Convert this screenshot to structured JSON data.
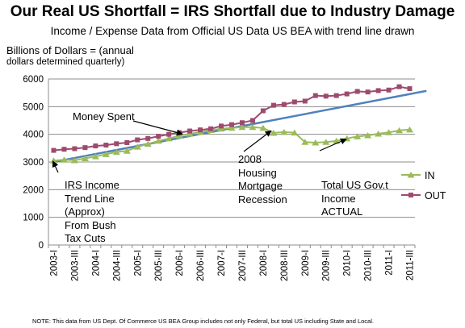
{
  "chart_data": {
    "type": "line",
    "title": "Our Real US Shortfall = IRS Shortfall due to Industry Damage",
    "subtitle": "Income / Expense Data from Official US Data US BEA with trend line drawn",
    "ylabel_line1": "Billions of Dollars = (annual",
    "ylabel_line2": "dollars determined quarterly)",
    "xlabel": "",
    "ylim": [
      0,
      6000
    ],
    "yticks": [
      0,
      1000,
      2000,
      3000,
      4000,
      5000,
      6000
    ],
    "ytick_labels": [
      "0",
      "1000",
      "2000",
      "3000",
      "4000",
      "5000",
      "6000"
    ],
    "grid": "horizontal",
    "legend_position": "right",
    "categories": [
      "2003-I",
      "2003-II",
      "2003-III",
      "2003-IV",
      "2004-I",
      "2004-II",
      "2004-III",
      "2004-IV",
      "2005-I",
      "2005-II",
      "2005-III",
      "2005-IV",
      "2006-I",
      "2006-II",
      "2006-III",
      "2006-IV",
      "2007-I",
      "2007-II",
      "2007-III",
      "2007-IV",
      "2008-I",
      "2008-II",
      "2008-III",
      "2008-IV",
      "2009-I",
      "2009-II",
      "2009-III",
      "2009-IV",
      "2010-I",
      "2010-II",
      "2010-III",
      "2010-IV",
      "2011-I",
      "2011-II",
      "2011-III"
    ],
    "xtick_labels": [
      "2003-I",
      "2003-III",
      "2004-I",
      "2004-III",
      "2005-I",
      "2005-III",
      "2006-I",
      "2006-III",
      "2007-I",
      "2007-III",
      "2008-I",
      "2008-III",
      "2009-I",
      "2009-III",
      "2010-I",
      "2010-III",
      "2011-I",
      "2011-III"
    ],
    "series": [
      {
        "name": "IN",
        "color": "#9bbb59",
        "marker": "triangle",
        "values": [
          3050,
          3080,
          3060,
          3130,
          3200,
          3280,
          3360,
          3400,
          3550,
          3650,
          3760,
          3850,
          3950,
          4020,
          4080,
          4150,
          4200,
          4230,
          4260,
          4260,
          4230,
          4050,
          4080,
          4060,
          3720,
          3700,
          3720,
          3760,
          3850,
          3920,
          3960,
          4020,
          4070,
          4140,
          4170
        ]
      },
      {
        "name": "OUT",
        "color": "#9e4a6e",
        "marker": "square",
        "values": [
          3420,
          3460,
          3480,
          3520,
          3580,
          3610,
          3660,
          3700,
          3800,
          3850,
          3930,
          4000,
          4060,
          4120,
          4160,
          4200,
          4300,
          4350,
          4420,
          4500,
          4850,
          5050,
          5080,
          5170,
          5200,
          5400,
          5380,
          5400,
          5460,
          5550,
          5530,
          5580,
          5600,
          5720,
          5650
        ]
      }
    ],
    "trend_line": {
      "color": "#4f81bd",
      "x_start": "2003-I",
      "y_start": 3000,
      "x_end": "2011-III",
      "y_end": 5570
    },
    "annotations": [
      {
        "id": "money-spent",
        "text": "Money Spent"
      },
      {
        "id": "recession",
        "text": "2008\nHousing\nMortgage\nRecession"
      },
      {
        "id": "trend",
        "text": "IRS Income\nTrend Line\n(Approx)\nFrom Bush\nTax Cuts"
      },
      {
        "id": "actual",
        "text": "Total US Gov.t\nIncome\nACTUAL"
      }
    ]
  },
  "note": "NOTE:  This data from US Dept. Of Commerce US BEA Group includes not only Federal, but total US including State and Local."
}
